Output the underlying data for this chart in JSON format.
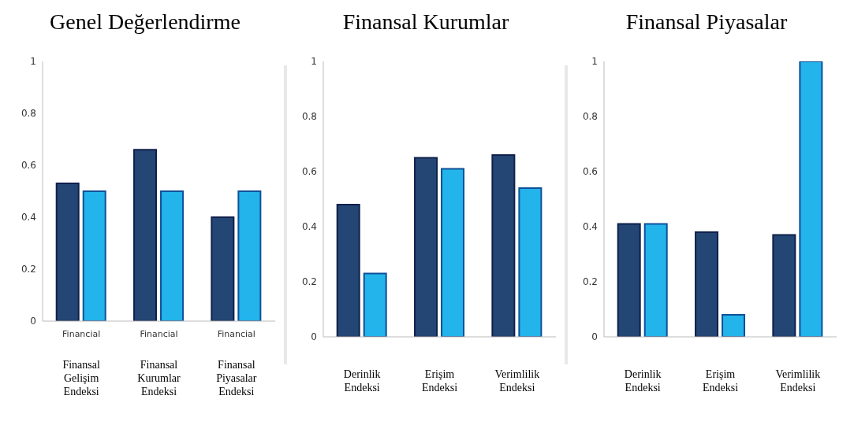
{
  "chart_data": [
    {
      "type": "bar",
      "title": "Genel Değerlendirme",
      "categories": [
        "Finansal Gelişim Endeksi",
        "Finansal Kurumlar Endeksi",
        "Finansal Piyasalar Endeksi"
      ],
      "series": [
        {
          "color": "#234674",
          "values": [
            0.53,
            0.66,
            0.4
          ]
        },
        {
          "color": "#22b4ea",
          "values": [
            0.5,
            0.5,
            0.5
          ]
        }
      ],
      "annotations": [
        "Financial",
        "Financial",
        "Financial"
      ],
      "ylim": [
        0,
        1
      ],
      "yticks": [
        0,
        0.2,
        0.4,
        0.6,
        0.8,
        1
      ],
      "grid": false,
      "legend": false
    },
    {
      "type": "bar",
      "title": "Finansal Kurumlar",
      "categories": [
        "Derinlik Endeksi",
        "Erişim Endeksi",
        "Verimlilik Endeksi"
      ],
      "series": [
        {
          "color": "#234674",
          "values": [
            0.48,
            0.65,
            0.66
          ]
        },
        {
          "color": "#22b4ea",
          "values": [
            0.23,
            0.61,
            0.54
          ]
        }
      ],
      "ylim": [
        0,
        1
      ],
      "yticks": [
        0,
        0.2,
        0.4,
        0.6,
        0.8,
        1
      ],
      "grid": false,
      "legend": false
    },
    {
      "type": "bar",
      "title": "Finansal Piyasalar",
      "categories": [
        "Derinlik Endeksi",
        "Erişim Endeksi",
        "Verimlilik Endeksi"
      ],
      "series": [
        {
          "color": "#234674",
          "values": [
            0.41,
            0.38,
            0.37
          ]
        },
        {
          "color": "#22b4ea",
          "values": [
            0.41,
            0.08,
            1.0
          ]
        }
      ],
      "ylim": [
        0,
        1
      ],
      "yticks": [
        0,
        0.2,
        0.4,
        0.6,
        0.8,
        1
      ],
      "grid": false,
      "legend": false
    }
  ]
}
